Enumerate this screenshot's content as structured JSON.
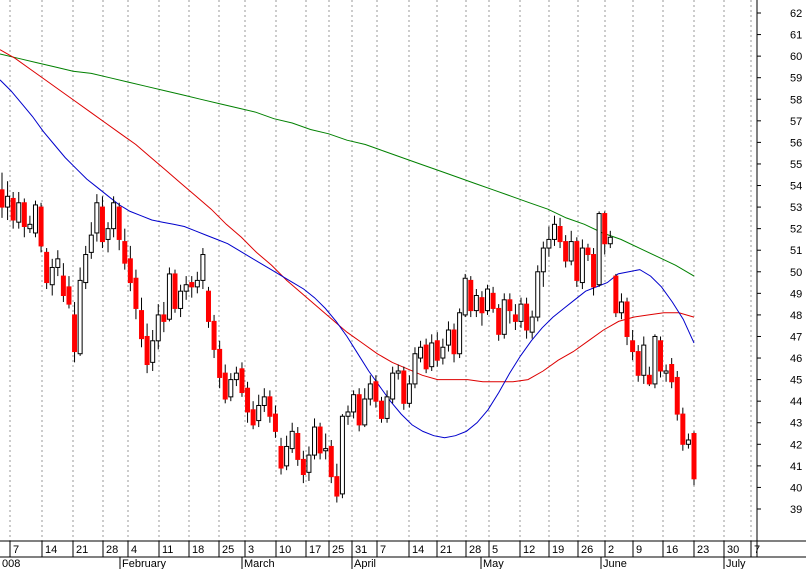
{
  "chart_data": {
    "type": "candlestick",
    "ylim": [
      37.5,
      62.5
    ],
    "y_ticks": [
      39,
      40,
      41,
      42,
      43,
      44,
      45,
      46,
      47,
      48,
      49,
      50,
      51,
      52,
      53,
      54,
      55,
      56,
      57,
      58,
      59,
      60,
      61,
      62
    ],
    "x_axis": {
      "date_labels": [
        "7",
        "14",
        "21",
        "28",
        "4",
        "11",
        "18",
        "25",
        "3",
        "10",
        "17",
        "25",
        "31",
        "7",
        "14",
        "21",
        "28",
        "5",
        "12",
        "19",
        "26",
        "2",
        "9",
        "16",
        "23",
        "30",
        "7"
      ],
      "month_labels": [
        "008",
        "February",
        "March",
        "April",
        "May",
        "June",
        "July"
      ]
    },
    "colors": {
      "up": "#ffffff",
      "down": "#ff0000",
      "ma_short": "#0000cc",
      "ma_mid": "#dd0000",
      "ma_long": "#008000",
      "grid": "#999999"
    },
    "series": [
      {
        "values": [
          [
            53.8,
            53.0,
            54.6,
            52.5
          ],
          [
            53.0,
            53.5,
            54.2,
            52.4
          ],
          [
            53.4,
            52.4,
            53.7,
            52.0
          ],
          [
            52.3,
            53.2,
            53.7,
            52.0
          ],
          [
            53.2,
            52.1,
            53.4,
            51.6
          ],
          [
            52.0,
            52.2,
            52.6,
            51.8
          ],
          [
            51.8,
            53.1,
            53.3,
            51.6
          ],
          [
            53.0,
            51.2,
            53.2,
            50.9
          ],
          [
            50.9,
            49.5,
            51.1,
            49.2
          ],
          [
            49.4,
            50.2,
            50.6,
            48.9
          ],
          [
            50.2,
            50.6,
            51.0,
            49.8
          ],
          [
            49.8,
            48.9,
            50.4,
            48.6
          ],
          [
            49.3,
            48.5,
            49.8,
            48.3
          ],
          [
            48.0,
            46.3,
            48.6,
            45.8
          ],
          [
            46.2,
            49.6,
            50.2,
            46.1
          ],
          [
            49.5,
            50.8,
            51.2,
            49.2
          ],
          [
            50.9,
            51.7,
            52.3,
            50.6
          ],
          [
            51.8,
            53.2,
            53.6,
            51.4
          ],
          [
            53.0,
            51.4,
            53.5,
            51.1
          ],
          [
            51.5,
            52.0,
            52.3,
            50.9
          ],
          [
            52.0,
            53.2,
            53.5,
            51.6
          ],
          [
            53.0,
            51.5,
            53.2,
            51.0
          ],
          [
            51.4,
            50.4,
            52.0,
            50.1
          ],
          [
            50.6,
            49.5,
            51.2,
            49.1
          ],
          [
            49.7,
            48.3,
            50.1,
            47.8
          ],
          [
            48.2,
            46.9,
            48.8,
            46.5
          ],
          [
            47.0,
            45.7,
            47.6,
            45.3
          ],
          [
            45.8,
            46.8,
            47.3,
            45.4
          ],
          [
            46.8,
            48.0,
            48.5,
            46.4
          ],
          [
            48.0,
            47.7,
            48.6,
            47.2
          ],
          [
            47.8,
            49.9,
            50.2,
            47.7
          ],
          [
            49.9,
            48.3,
            50.1,
            48.1
          ],
          [
            48.3,
            49.1,
            49.4,
            47.9
          ],
          [
            49.1,
            49.4,
            49.8,
            48.7
          ],
          [
            49.5,
            49.3,
            49.8,
            48.8
          ],
          [
            49.3,
            49.6,
            50.0,
            49.0
          ],
          [
            49.6,
            50.8,
            51.1,
            49.2
          ],
          [
            49.1,
            47.7,
            49.3,
            47.4
          ],
          [
            47.7,
            46.4,
            48.0,
            46.0
          ],
          [
            46.4,
            45.1,
            46.8,
            44.6
          ],
          [
            45.3,
            44.1,
            45.7,
            43.9
          ],
          [
            44.2,
            45.0,
            45.3,
            44.0
          ],
          [
            45.0,
            45.3,
            45.6,
            44.7
          ],
          [
            45.5,
            44.4,
            45.8,
            44.2
          ],
          [
            44.6,
            43.5,
            44.9,
            43.0
          ],
          [
            43.6,
            42.9,
            44.0,
            42.7
          ],
          [
            43.1,
            43.8,
            44.3,
            42.8
          ],
          [
            43.8,
            44.2,
            44.6,
            43.5
          ],
          [
            44.2,
            43.3,
            44.5,
            43.0
          ],
          [
            43.4,
            42.6,
            43.8,
            42.3
          ],
          [
            41.9,
            40.9,
            42.3,
            40.6
          ],
          [
            41.0,
            41.9,
            42.4,
            40.8
          ],
          [
            41.8,
            42.6,
            43.0,
            41.6
          ],
          [
            42.5,
            41.3,
            42.8,
            41.0
          ],
          [
            41.3,
            40.6,
            41.7,
            40.2
          ],
          [
            40.7,
            41.5,
            41.9,
            40.3
          ],
          [
            41.5,
            42.8,
            43.2,
            41.3
          ],
          [
            42.8,
            41.6,
            43.0,
            41.3
          ],
          [
            41.7,
            41.8,
            42.5,
            41.3
          ],
          [
            41.9,
            40.5,
            42.2,
            40.2
          ],
          [
            40.5,
            39.6,
            41.1,
            39.3
          ],
          [
            39.7,
            43.3,
            43.4,
            39.5
          ],
          [
            43.3,
            43.5,
            43.8,
            42.9
          ],
          [
            43.5,
            44.3,
            44.5,
            43.2
          ],
          [
            44.3,
            42.9,
            44.6,
            42.6
          ],
          [
            42.9,
            44.1,
            44.6,
            42.8
          ],
          [
            44.1,
            44.8,
            45.2,
            43.8
          ],
          [
            44.9,
            44.0,
            45.2,
            43.7
          ],
          [
            44.0,
            43.2,
            44.2,
            43.0
          ],
          [
            43.2,
            44.2,
            44.5,
            43.0
          ],
          [
            44.1,
            45.3,
            45.6,
            43.9
          ],
          [
            45.3,
            45.4,
            45.7,
            45.0
          ],
          [
            45.4,
            43.9,
            45.6,
            43.6
          ],
          [
            43.9,
            44.8,
            45.2,
            43.7
          ],
          [
            44.8,
            46.2,
            46.5,
            44.6
          ],
          [
            46.0,
            46.5,
            46.8,
            45.8
          ],
          [
            46.6,
            45.5,
            46.9,
            45.3
          ],
          [
            45.6,
            46.7,
            47.1,
            45.4
          ],
          [
            46.8,
            45.9,
            47.2,
            45.6
          ],
          [
            46.0,
            46.5,
            46.9,
            45.7
          ],
          [
            46.6,
            47.3,
            47.7,
            46.3
          ],
          [
            47.3,
            46.2,
            47.6,
            45.8
          ],
          [
            46.2,
            48.1,
            48.3,
            46.0
          ],
          [
            48.0,
            49.7,
            49.9,
            47.9
          ],
          [
            49.6,
            48.2,
            49.8,
            47.9
          ],
          [
            48.2,
            48.9,
            49.2,
            47.9
          ],
          [
            48.8,
            48.1,
            49.1,
            47.5
          ],
          [
            48.2,
            49.2,
            49.4,
            48.0
          ],
          [
            49.0,
            48.3,
            49.3,
            48.1
          ],
          [
            48.3,
            47.1,
            48.5,
            46.8
          ],
          [
            47.1,
            48.7,
            49.0,
            46.9
          ],
          [
            48.7,
            48.2,
            49.0,
            47.6
          ],
          [
            48.0,
            47.7,
            48.5,
            47.3
          ],
          [
            47.7,
            48.5,
            48.8,
            47.4
          ],
          [
            48.5,
            47.3,
            48.8,
            46.9
          ],
          [
            47.2,
            47.9,
            48.2,
            46.9
          ],
          [
            47.9,
            50.0,
            50.3,
            47.7
          ],
          [
            50.0,
            51.1,
            51.4,
            49.3
          ],
          [
            51.1,
            51.5,
            52.1,
            50.7
          ],
          [
            51.5,
            52.2,
            52.6,
            51.2
          ],
          [
            52.1,
            51.4,
            52.5,
            51.1
          ],
          [
            51.4,
            50.5,
            51.7,
            50.2
          ],
          [
            50.5,
            51.4,
            51.9,
            50.3
          ],
          [
            51.4,
            49.6,
            51.6,
            49.3
          ],
          [
            49.5,
            51.1,
            51.5,
            49.2
          ],
          [
            51.1,
            50.8,
            51.3,
            50.5
          ],
          [
            50.8,
            49.3,
            51.1,
            48.9
          ],
          [
            49.4,
            52.7,
            52.8,
            49.3
          ],
          [
            52.7,
            51.3,
            52.8,
            50.8
          ],
          [
            51.3,
            51.6,
            51.9,
            51.1
          ],
          [
            49.8,
            48.1,
            49.9,
            47.9
          ],
          [
            48.1,
            48.6,
            49.0,
            47.8
          ],
          [
            48.6,
            47.0,
            48.8,
            46.6
          ],
          [
            46.8,
            46.3,
            47.3,
            45.9
          ],
          [
            46.3,
            45.2,
            46.6,
            44.9
          ],
          [
            45.2,
            46.6,
            47.0,
            44.8
          ],
          [
            45.2,
            44.8,
            45.6,
            44.7
          ],
          [
            44.8,
            47.0,
            47.1,
            44.6
          ],
          [
            46.8,
            45.4,
            47.0,
            45.1
          ],
          [
            45.3,
            45.4,
            45.7,
            44.9
          ],
          [
            45.7,
            44.9,
            46.0,
            44.6
          ],
          [
            45.1,
            43.4,
            45.4,
            43.1
          ],
          [
            43.4,
            42.0,
            43.7,
            41.7
          ],
          [
            42.0,
            42.2,
            42.5,
            41.8
          ],
          [
            42.5,
            40.4,
            42.6,
            40.1
          ]
        ]
      },
      {
        "values": [
          58.9,
          58.4,
          57.8,
          57.2,
          56.5,
          55.9,
          55.3,
          54.8,
          54.3,
          53.9,
          53.5,
          53.1,
          52.8,
          52.6,
          52.4,
          52.3,
          52.2,
          52.1,
          51.9,
          51.7,
          51.5,
          51.3,
          51.0,
          50.7,
          50.4,
          50.1,
          49.8,
          49.5,
          49.2,
          48.8,
          48.3,
          47.7,
          47.0,
          46.2,
          45.4,
          44.7,
          44.0,
          43.4,
          42.9,
          42.6,
          42.4,
          42.3,
          42.4,
          42.6,
          43.0,
          43.6,
          44.4,
          45.3,
          46.1,
          46.8,
          47.4,
          47.9,
          48.3,
          48.7,
          49.1,
          49.3,
          49.5,
          49.9,
          50.0,
          50.1,
          49.8,
          49.3,
          48.6,
          47.8,
          46.7
        ]
      },
      {
        "values": [
          60.3,
          59.9,
          59.4,
          58.9,
          58.4,
          57.9,
          57.4,
          56.9,
          56.4,
          55.9,
          55.3,
          54.7,
          54.1,
          53.5,
          52.9,
          52.2,
          51.6,
          50.9,
          50.3,
          49.6,
          49.0,
          48.4,
          47.8,
          47.2,
          46.7,
          46.2,
          45.8,
          45.5,
          45.2,
          45.0,
          45.0,
          45.0,
          44.9,
          44.9,
          44.9,
          45.0,
          45.4,
          45.9,
          46.3,
          46.8,
          47.3,
          47.7,
          47.9,
          48.0,
          48.1,
          48.1,
          47.9
        ]
      },
      {
        "values": [
          60.1,
          59.9,
          59.7,
          59.5,
          59.3,
          59.2,
          59.0,
          58.8,
          58.6,
          58.4,
          58.2,
          58.0,
          57.8,
          57.6,
          57.4,
          57.1,
          56.9,
          56.6,
          56.4,
          56.1,
          55.9,
          55.6,
          55.3,
          55.0,
          54.7,
          54.4,
          54.1,
          53.8,
          53.5,
          53.2,
          52.9,
          52.5,
          52.2,
          51.8,
          51.5,
          51.1,
          50.7,
          50.3,
          49.8
        ]
      }
    ]
  }
}
